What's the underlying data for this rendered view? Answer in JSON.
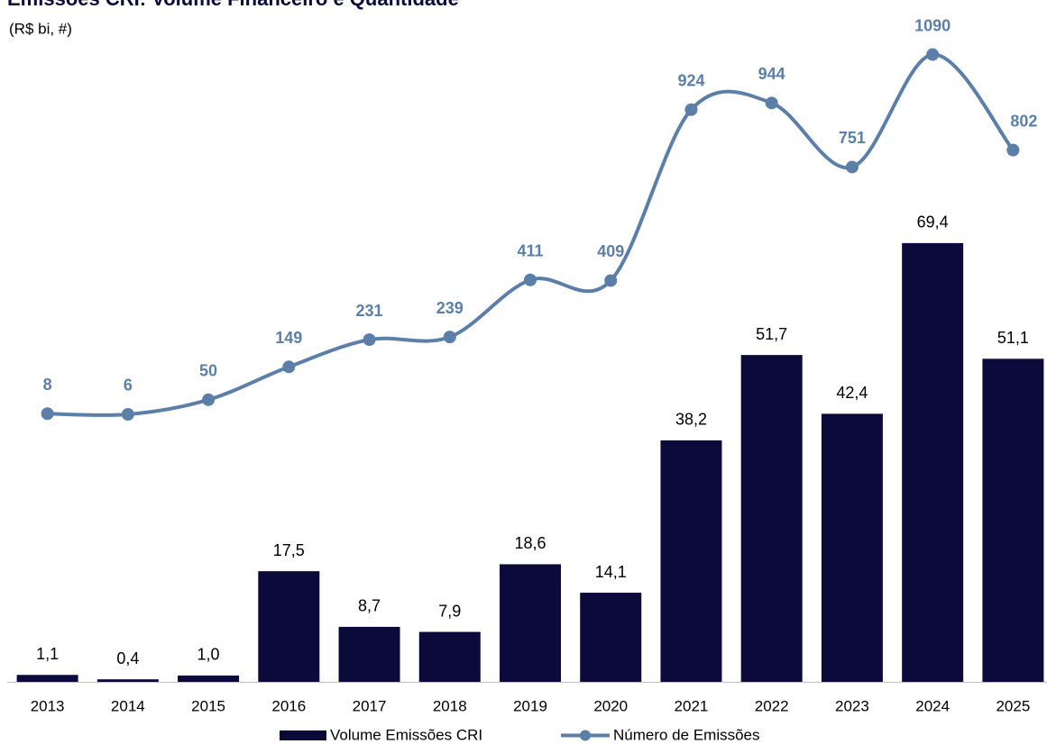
{
  "chart_data": {
    "type": "bar",
    "title": "Emissões CRI: Volume Financeiro e Quantidade",
    "subtitle": "(R$ bi, #)",
    "categories": [
      "2013",
      "2014",
      "2015",
      "2016",
      "2017",
      "2018",
      "2019",
      "2020",
      "2021",
      "2022",
      "2023",
      "2024",
      "2025"
    ],
    "series": [
      {
        "name": "Volume Emissões CRI",
        "type": "bar",
        "color": "#0b0a3b",
        "values": [
          1.1,
          0.4,
          1.0,
          17.5,
          8.7,
          7.9,
          18.6,
          14.1,
          38.2,
          51.7,
          42.4,
          69.4,
          51.1
        ],
        "value_labels": [
          "1,1",
          "0,4",
          "1,0",
          "17,5",
          "8,7",
          "7,9",
          "18,6",
          "14,1",
          "38,2",
          "51,7",
          "42,4",
          "69,4",
          "51,1"
        ]
      },
      {
        "name": "Número de Emissões",
        "type": "line",
        "axis": "y2",
        "color": "#5b7fa8",
        "values": [
          8,
          6,
          50,
          149,
          231,
          239,
          411,
          409,
          924,
          944,
          751,
          1090,
          802
        ]
      }
    ],
    "ylim": [
      0,
      105
    ],
    "y2lim": [
      -800,
      1200
    ],
    "legend": "bottom"
  }
}
